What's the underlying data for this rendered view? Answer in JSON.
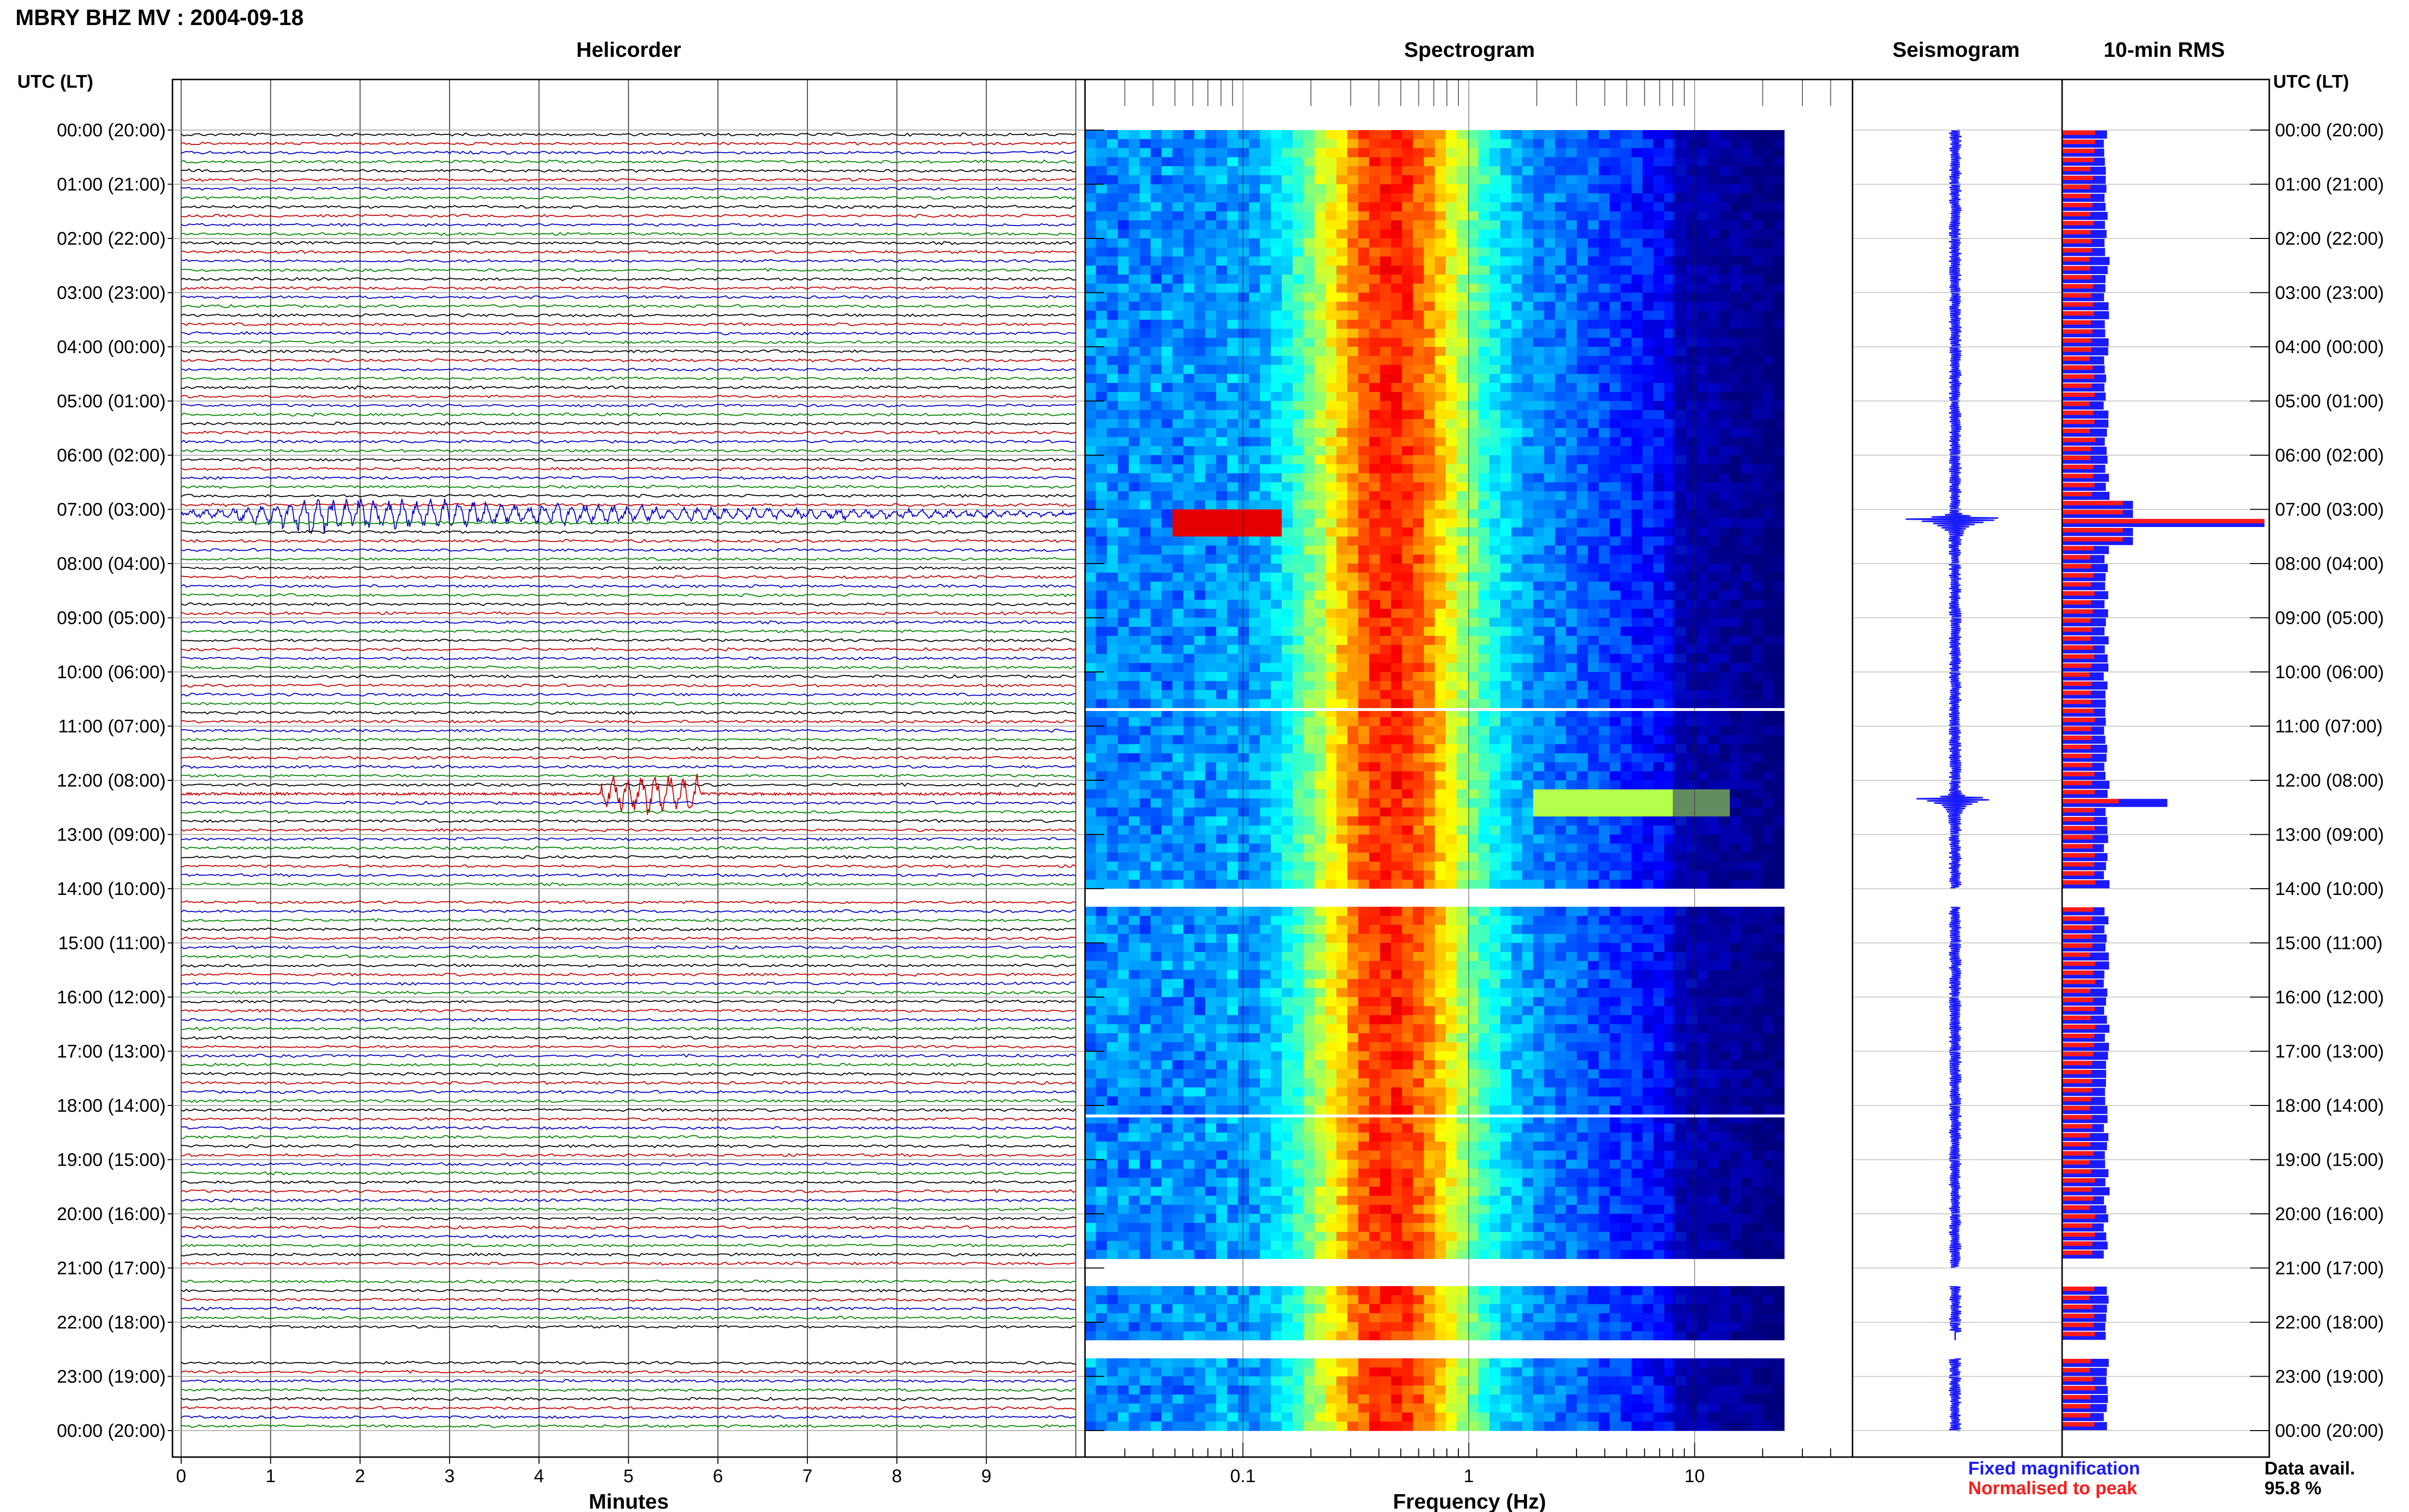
{
  "title": "MBRY BHZ MV : 2004-09-18",
  "colors": {
    "trace_cycle": [
      "#000000",
      "#cc0000",
      "#0000cc",
      "#008800"
    ],
    "rms_fixed": "#1a1aff",
    "rms_normalised": "#ff1a1a",
    "spectrogram_gap": "#ffffff"
  },
  "chart_data": [
    {
      "type": "line",
      "panel": "Helicorder",
      "title": "Helicorder",
      "xlabel": "Minutes",
      "ylabel": "UTC (LT)",
      "xlim": [
        0,
        10
      ],
      "x_ticks": [
        0,
        1,
        2,
        3,
        4,
        5,
        6,
        7,
        8,
        9
      ],
      "grid": true,
      "traces_per_hour": 6,
      "trace_minutes": 10,
      "y_ticks": [
        "00:00 (20:00)",
        "01:00 (21:00)",
        "02:00 (22:00)",
        "03:00 (23:00)",
        "04:00 (00:00)",
        "05:00 (01:00)",
        "06:00 (02:00)",
        "07:00 (03:00)",
        "08:00 (04:00)",
        "09:00 (05:00)",
        "10:00 (06:00)",
        "11:00 (07:00)",
        "12:00 (08:00)",
        "13:00 (09:00)",
        "14:00 (10:00)",
        "15:00 (11:00)",
        "16:00 (12:00)",
        "17:00 (13:00)",
        "18:00 (14:00)",
        "19:00 (15:00)",
        "20:00 (16:00)",
        "21:00 (17:00)",
        "22:00 (18:00)",
        "23:00 (19:00)",
        "00:00 (20:00)"
      ],
      "events": [
        {
          "utc": "07:00",
          "start_minute": 0.1,
          "peak_minute": 1.5,
          "end_minute": 9.9,
          "amplitude": 4.0
        },
        {
          "utc": "12:10",
          "start_minute": 4.7,
          "peak_minute": 5.0,
          "end_minute": 5.8,
          "amplitude": 4.5
        }
      ],
      "gaps": [
        {
          "start": "14:00",
          "end": "14:10"
        },
        {
          "start": "21:00",
          "end": "21:10"
        },
        {
          "start": "22:10",
          "end": "22:40"
        }
      ]
    },
    {
      "type": "heatmap",
      "panel": "Spectrogram",
      "title": "Spectrogram",
      "xlabel": "Frequency (Hz)",
      "xscale": "log",
      "xlim": [
        0.02,
        50
      ],
      "x_tick_labels": [
        "0.1",
        "1",
        "10"
      ],
      "x_ticks": [
        0.1,
        1,
        10
      ],
      "data_fmax": 25,
      "colormap": "jet",
      "peak_band_hz": [
        0.2,
        1.0
      ],
      "microseism_peak_hz": 0.45,
      "events": [
        {
          "utc": "07:10",
          "fmin": 0.05,
          "fmax": 0.15,
          "level": "high"
        },
        {
          "utc": "12:20",
          "fmin": 2,
          "fmax": 15,
          "level": "medium"
        }
      ],
      "gaps": [
        {
          "start": "10:40",
          "end": "10:42"
        },
        {
          "start": "14:00",
          "end": "14:20"
        },
        {
          "start": "18:10",
          "end": "18:12"
        },
        {
          "start": "20:50",
          "end": "21:20"
        },
        {
          "start": "22:20",
          "end": "22:40"
        }
      ]
    },
    {
      "type": "line",
      "panel": "Seismogram",
      "title": "Seismogram",
      "events": [
        {
          "utc": "07:10",
          "amplitude": 4.0
        },
        {
          "utc": "12:20",
          "amplitude": 3.0
        }
      ]
    },
    {
      "type": "bar",
      "panel": "10-min RMS",
      "title": "10-min RMS",
      "ylabel": "UTC (LT)",
      "orientation": "horizontal",
      "series": [
        {
          "name": "Fixed magnification",
          "color": "#1a1aff",
          "baseline": 0.22,
          "peak_values": [
            {
              "utc": "07:10",
              "value": 1.0
            },
            {
              "utc": "12:20",
              "value": 0.52
            }
          ]
        },
        {
          "name": "Normalised to peak",
          "color": "#ff1a1a",
          "baseline": 0.15,
          "peak_values": [
            {
              "utc": "07:10",
              "value": 1.0
            },
            {
              "utc": "12:20",
              "value": 0.28
            }
          ]
        }
      ],
      "data_availability_label": "Data avail.",
      "data_availability": "95.8 %"
    }
  ],
  "labels": {
    "left_axis": "UTC (LT)",
    "right_axis": "UTC (LT)",
    "legend_fixed": "Fixed magnification",
    "legend_normalised": "Normalised to peak"
  }
}
